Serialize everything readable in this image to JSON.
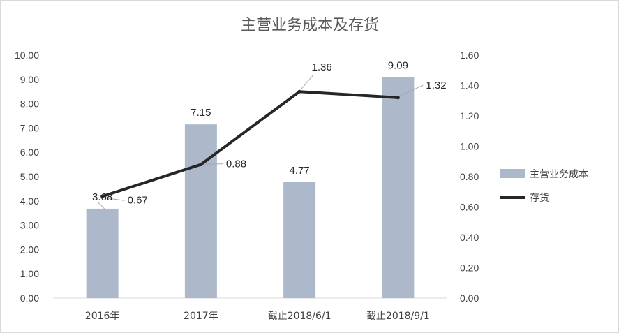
{
  "chart_data": {
    "type": "bar",
    "title": "主营业务成本及存货",
    "categories": [
      "2016年",
      "2017年",
      "截止2018/6/1",
      "截止2018/9/1"
    ],
    "series": [
      {
        "name": "主营业务成本",
        "type": "bar",
        "axis": "left",
        "color": "#adb9ca",
        "values": [
          3.68,
          7.15,
          4.77,
          9.09
        ],
        "labels": [
          "3.68",
          "7.15",
          "4.77",
          "9.09"
        ]
      },
      {
        "name": "存货",
        "type": "line",
        "axis": "right",
        "color": "#262626",
        "values": [
          0.67,
          0.88,
          1.36,
          1.32
        ],
        "labels": [
          "0.67",
          "0.88",
          "1.36",
          "1.32"
        ]
      }
    ],
    "ylim_left": [
      0,
      10
    ],
    "ylim_right": [
      0,
      1.6
    ],
    "yticks_left": [
      "0.00",
      "1.00",
      "2.00",
      "3.00",
      "4.00",
      "5.00",
      "6.00",
      "7.00",
      "8.00",
      "9.00",
      "10.00"
    ],
    "yticks_right": [
      "0.00",
      "0.20",
      "0.40",
      "0.60",
      "0.80",
      "1.00",
      "1.20",
      "1.40",
      "1.60"
    ],
    "grid": false,
    "legend_position": "right"
  }
}
